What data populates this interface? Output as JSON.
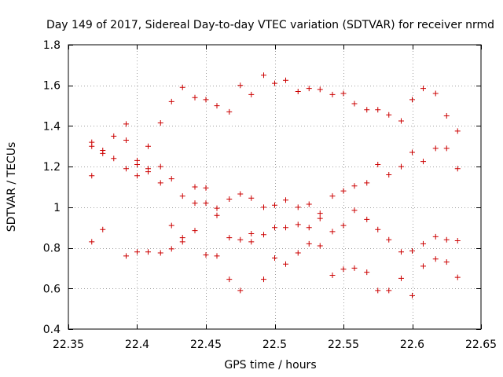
{
  "chart_data": {
    "type": "scatter",
    "title": "Day 149 of 2017, Sidereal Day-to-day VTEC variation (SDTVAR) for receiver nrmd",
    "xlabel": "GPS time / hours",
    "ylabel": "SDTVAR / TECUs",
    "xlim": [
      22.35,
      22.65
    ],
    "ylim": [
      0.4,
      1.8
    ],
    "xticks": [
      22.35,
      22.4,
      22.45,
      22.5,
      22.55,
      22.6,
      22.65
    ],
    "xtick_labels": [
      "22.35",
      "22.4",
      "22.45",
      "22.5",
      "22.55",
      "22.6",
      "22.65"
    ],
    "yticks": [
      0.4,
      0.6,
      0.8,
      1.0,
      1.2,
      1.4,
      1.6,
      1.8
    ],
    "ytick_labels": [
      "0.4",
      "0.6",
      "0.8",
      "1",
      "1.2",
      "1.4",
      "1.6",
      "1.8"
    ],
    "grid": true,
    "marker": "+",
    "color": "#cc0000",
    "series": [
      {
        "name": "SDTVAR",
        "x": [
          22.367,
          22.367,
          22.367,
          22.367,
          22.375,
          22.375,
          22.375,
          22.383,
          22.383,
          22.392,
          22.392,
          22.392,
          22.392,
          22.4,
          22.4,
          22.4,
          22.4,
          22.408,
          22.408,
          22.408,
          22.408,
          22.417,
          22.417,
          22.417,
          22.417,
          22.425,
          22.425,
          22.425,
          22.425,
          22.433,
          22.433,
          22.433,
          22.433,
          22.442,
          22.442,
          22.442,
          22.442,
          22.45,
          22.45,
          22.45,
          22.45,
          22.458,
          22.458,
          22.458,
          22.458,
          22.467,
          22.467,
          22.467,
          22.467,
          22.475,
          22.475,
          22.475,
          22.475,
          22.483,
          22.483,
          22.483,
          22.483,
          22.492,
          22.492,
          22.492,
          22.492,
          22.5,
          22.5,
          22.5,
          22.5,
          22.508,
          22.508,
          22.508,
          22.508,
          22.517,
          22.517,
          22.517,
          22.517,
          22.525,
          22.525,
          22.525,
          22.525,
          22.533,
          22.533,
          22.533,
          22.533,
          22.542,
          22.542,
          22.542,
          22.542,
          22.55,
          22.55,
          22.55,
          22.55,
          22.558,
          22.558,
          22.558,
          22.558,
          22.567,
          22.567,
          22.567,
          22.567,
          22.575,
          22.575,
          22.575,
          22.575,
          22.583,
          22.583,
          22.583,
          22.583,
          22.592,
          22.592,
          22.592,
          22.592,
          22.6,
          22.6,
          22.6,
          22.6,
          22.608,
          22.608,
          22.608,
          22.608,
          22.617,
          22.617,
          22.617,
          22.617,
          22.625,
          22.625,
          22.625,
          22.625,
          22.633,
          22.633,
          22.633,
          22.633
        ],
        "y": [
          1.32,
          1.3,
          1.155,
          0.83,
          1.28,
          1.265,
          0.89,
          1.35,
          1.24,
          1.41,
          1.33,
          1.19,
          0.76,
          1.23,
          1.21,
          1.155,
          0.78,
          1.3,
          1.19,
          1.175,
          0.78,
          1.415,
          1.2,
          1.12,
          0.775,
          1.52,
          1.14,
          0.91,
          0.795,
          1.59,
          1.055,
          0.85,
          0.83,
          1.54,
          1.1,
          1.02,
          0.885,
          1.53,
          1.095,
          1.02,
          0.765,
          1.5,
          0.995,
          0.96,
          0.76,
          1.47,
          1.04,
          0.85,
          0.645,
          1.6,
          1.065,
          0.84,
          0.59,
          1.555,
          1.045,
          0.87,
          0.83,
          1.65,
          1.0,
          0.865,
          0.645,
          1.61,
          1.01,
          0.9,
          0.75,
          1.625,
          1.035,
          0.9,
          0.72,
          1.57,
          1.0,
          0.915,
          0.775,
          1.585,
          1.015,
          0.9,
          0.82,
          1.58,
          0.97,
          0.945,
          0.81,
          1.555,
          1.055,
          0.88,
          0.665,
          1.56,
          1.08,
          0.91,
          0.695,
          1.51,
          1.105,
          0.985,
          0.7,
          1.48,
          1.12,
          0.94,
          0.68,
          1.48,
          1.21,
          0.89,
          0.59,
          1.455,
          1.16,
          0.84,
          0.59,
          1.425,
          1.2,
          0.78,
          0.65,
          1.53,
          1.27,
          0.785,
          0.565,
          1.585,
          1.225,
          0.82,
          0.71,
          1.56,
          1.29,
          0.855,
          0.745,
          1.45,
          1.29,
          0.84,
          0.73,
          1.375,
          1.19,
          0.835,
          0.655
        ]
      }
    ]
  }
}
